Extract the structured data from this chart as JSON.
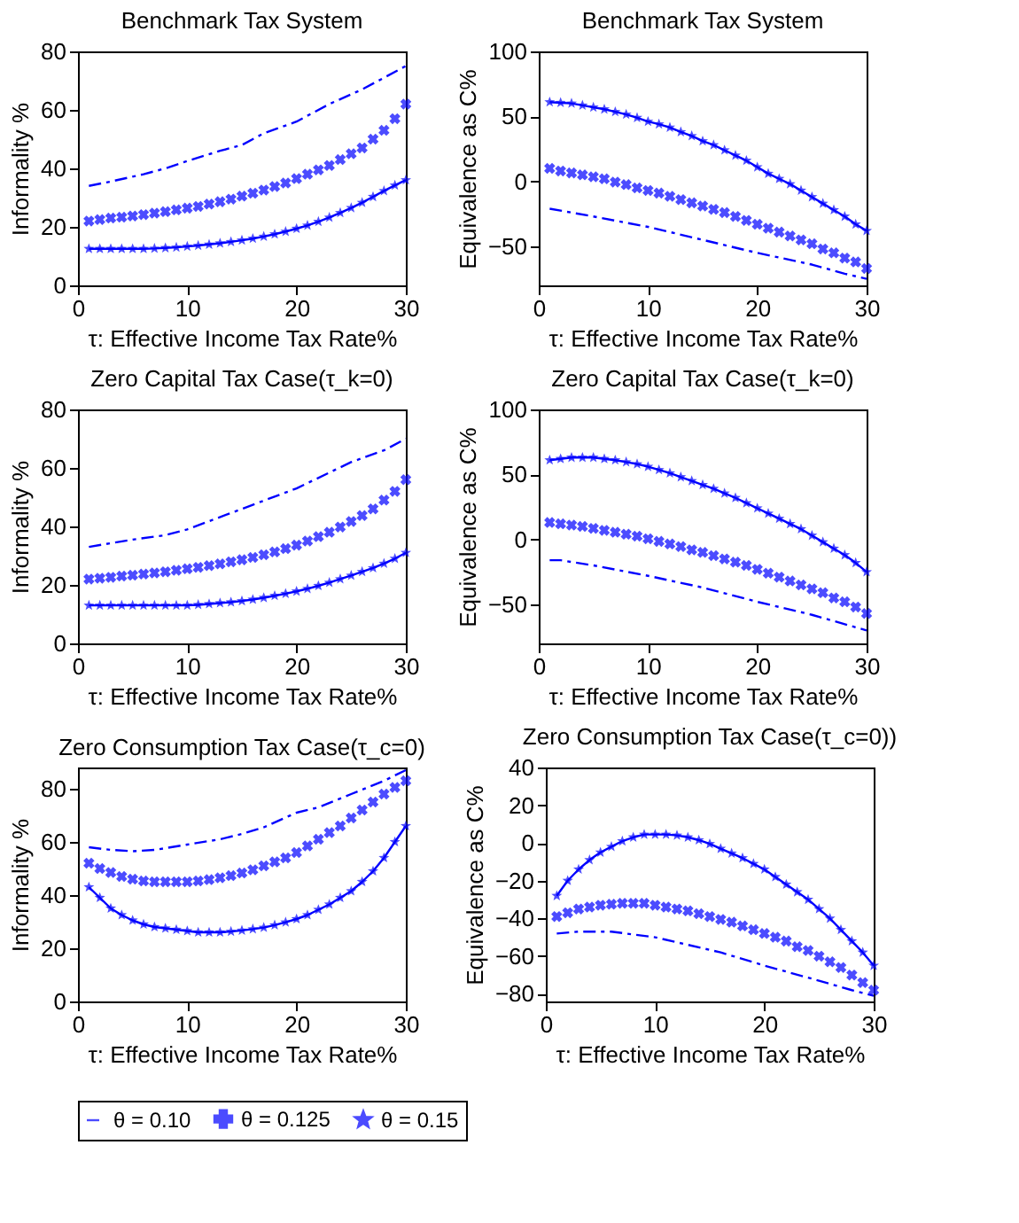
{
  "chart_data": [
    {
      "type": "line",
      "title": "Benchmark Tax System",
      "xlabel": "τ: Effective Income Tax Rate%",
      "ylabel": "Informality %",
      "xlim": [
        0,
        30
      ],
      "xticks": [
        0,
        10,
        20,
        30
      ],
      "ylim": [
        0,
        80
      ],
      "yticks": [
        0,
        20,
        40,
        60,
        80
      ],
      "grid": false,
      "series": [
        {
          "color": "#0000ff",
          "type": "line",
          "line_style": "dashed",
          "marker": "none",
          "x": [
            1,
            3,
            6,
            8,
            10,
            13,
            15,
            17,
            20,
            23,
            26,
            28,
            30
          ],
          "values": [
            34,
            35.5,
            38,
            40,
            42.5,
            46,
            48,
            52,
            56,
            62,
            67,
            71,
            75
          ]
        },
        {
          "color": "#0000ff",
          "type": "scatter",
          "marker": "cross",
          "x": [
            1,
            2,
            3,
            4,
            5,
            6,
            7,
            8,
            9,
            10,
            11,
            12,
            13,
            14,
            15,
            16,
            17,
            18,
            19,
            20,
            21,
            22,
            23,
            24,
            25,
            26,
            27,
            28,
            29,
            30
          ],
          "values": [
            22,
            22.5,
            23,
            23.3,
            23.7,
            24.2,
            24.7,
            25.2,
            25.8,
            26.4,
            27,
            27.8,
            28.6,
            29.5,
            30.5,
            31.5,
            32.6,
            33.8,
            35,
            36.5,
            38,
            39.5,
            41,
            43,
            45,
            47,
            50,
            53,
            57,
            62
          ]
        },
        {
          "color": "#0000ff",
          "type": "line",
          "line_style": "solid",
          "marker": "star",
          "x": [
            1,
            2,
            3,
            4,
            5,
            6,
            7,
            8,
            9,
            10,
            11,
            12,
            13,
            14,
            15,
            16,
            17,
            18,
            19,
            20,
            21,
            22,
            23,
            24,
            25,
            26,
            27,
            28,
            29,
            30
          ],
          "values": [
            12.5,
            12.5,
            12.5,
            12.5,
            12.5,
            12.5,
            12.6,
            12.8,
            13,
            13.3,
            13.6,
            14,
            14.4,
            14.9,
            15.4,
            16,
            16.7,
            17.5,
            18.4,
            19.4,
            20.5,
            21.8,
            23.2,
            24.8,
            26.5,
            28.3,
            30.3,
            32.3,
            34.2,
            36
          ]
        }
      ]
    },
    {
      "type": "line",
      "title": "Benchmark Tax System",
      "xlabel": "τ: Effective Income Tax Rate%",
      "ylabel": "Equivalence as C%",
      "xlim": [
        0,
        30
      ],
      "xticks": [
        0,
        10,
        20,
        30
      ],
      "ylim": [
        -80,
        100
      ],
      "yticks": [
        -50,
        0,
        50,
        100
      ],
      "grid": false,
      "series": [
        {
          "color": "#0000ff",
          "type": "line",
          "line_style": "dashed",
          "marker": "none",
          "x": [
            1,
            5,
            10,
            15,
            20,
            25,
            28,
            30
          ],
          "values": [
            -21,
            -27,
            -35,
            -45,
            -55,
            -64,
            -71,
            -75
          ]
        },
        {
          "color": "#0000ff",
          "type": "scatter",
          "marker": "cross",
          "x": [
            1,
            2,
            3,
            4,
            5,
            6,
            7,
            8,
            9,
            10,
            11,
            12,
            13,
            14,
            15,
            16,
            17,
            18,
            19,
            20,
            21,
            22,
            23,
            24,
            25,
            26,
            27,
            28,
            29,
            30
          ],
          "values": [
            10,
            8,
            6.5,
            5,
            3.5,
            2,
            -0.5,
            -2.5,
            -5,
            -7,
            -9,
            -11.5,
            -14,
            -16.5,
            -19,
            -21.5,
            -24,
            -27,
            -30,
            -33,
            -36,
            -39,
            -42,
            -45,
            -48,
            -52,
            -55,
            -59,
            -62,
            -67
          ]
        },
        {
          "color": "#0000ff",
          "type": "line",
          "line_style": "solid",
          "marker": "star",
          "x": [
            1,
            2,
            3,
            4,
            5,
            6,
            7,
            8,
            9,
            10,
            11,
            12,
            13,
            14,
            15,
            16,
            17,
            18,
            19,
            20,
            21,
            22,
            23,
            24,
            25,
            26,
            27,
            28,
            29,
            30
          ],
          "values": [
            61,
            60.5,
            60,
            58.5,
            57,
            55.5,
            53.5,
            51.5,
            49,
            46,
            44,
            41.5,
            38,
            35,
            31,
            28,
            24,
            20,
            16,
            11,
            6,
            2,
            -2,
            -7,
            -12,
            -17,
            -22,
            -27,
            -33,
            -38
          ]
        }
      ]
    },
    {
      "type": "line",
      "title": "Zero Capital Tax Case(τ_k=0)",
      "xlabel": "τ: Effective Income Tax Rate%",
      "ylabel": "Informality %",
      "xlim": [
        0,
        30
      ],
      "xticks": [
        0,
        10,
        20,
        30
      ],
      "ylim": [
        0,
        80
      ],
      "yticks": [
        0,
        20,
        40,
        60,
        80
      ],
      "grid": false,
      "series": [
        {
          "color": "#0000ff",
          "type": "line",
          "line_style": "dashed",
          "marker": "none",
          "x": [
            1,
            5,
            8,
            10,
            15,
            20,
            25,
            28,
            30
          ],
          "values": [
            33,
            35.5,
            37,
            39,
            46,
            53,
            62,
            66,
            70
          ]
        },
        {
          "color": "#0000ff",
          "type": "scatter",
          "marker": "cross",
          "x": [
            1,
            2,
            3,
            4,
            5,
            6,
            7,
            8,
            9,
            10,
            11,
            12,
            13,
            14,
            15,
            16,
            17,
            18,
            19,
            20,
            21,
            22,
            23,
            24,
            25,
            26,
            27,
            28,
            29,
            30
          ],
          "values": [
            22,
            22.3,
            22.6,
            23,
            23.3,
            23.7,
            24.1,
            24.5,
            25,
            25.5,
            26,
            26.6,
            27.2,
            27.9,
            28.6,
            29.4,
            30.3,
            31.3,
            32.4,
            33.6,
            35,
            36.5,
            38,
            39.8,
            41.7,
            43.7,
            46,
            49,
            52,
            56
          ]
        },
        {
          "color": "#0000ff",
          "type": "line",
          "line_style": "solid",
          "marker": "star",
          "x": [
            1,
            2,
            3,
            4,
            5,
            6,
            7,
            8,
            9,
            10,
            11,
            12,
            13,
            14,
            15,
            16,
            17,
            18,
            19,
            20,
            21,
            22,
            23,
            24,
            25,
            26,
            27,
            28,
            29,
            30
          ],
          "values": [
            13,
            13,
            13,
            13,
            13,
            13,
            13,
            13,
            13,
            13,
            13.2,
            13.5,
            13.8,
            14.1,
            14.5,
            15,
            15.6,
            16.3,
            17,
            17.8,
            18.7,
            19.7,
            20.8,
            22,
            23.2,
            24.5,
            25.8,
            27.3,
            29,
            31
          ]
        }
      ]
    },
    {
      "type": "line",
      "title": "Zero Capital Tax Case(τ_k=0)",
      "xlabel": "τ: Effective Income Tax Rate%",
      "ylabel": "Equivalence as C%",
      "xlim": [
        0,
        30
      ],
      "xticks": [
        0,
        10,
        20,
        30
      ],
      "ylim": [
        -80,
        100
      ],
      "yticks": [
        -50,
        0,
        50,
        100
      ],
      "grid": false,
      "series": [
        {
          "color": "#0000ff",
          "type": "line",
          "line_style": "dashed",
          "marker": "none",
          "x": [
            1,
            2,
            5,
            10,
            15,
            20,
            25,
            30
          ],
          "values": [
            -16,
            -16,
            -20,
            -28,
            -37,
            -48,
            -58,
            -70
          ]
        },
        {
          "color": "#0000ff",
          "type": "scatter",
          "marker": "cross",
          "x": [
            1,
            2,
            3,
            4,
            5,
            6,
            7,
            8,
            9,
            10,
            11,
            12,
            13,
            14,
            15,
            16,
            17,
            18,
            19,
            20,
            21,
            22,
            23,
            24,
            25,
            26,
            27,
            28,
            29,
            30
          ],
          "values": [
            13,
            12,
            11,
            10,
            8.5,
            7,
            5.5,
            4,
            2.5,
            0.5,
            -1.5,
            -3.5,
            -5.5,
            -8,
            -10,
            -12.5,
            -15,
            -17.5,
            -20,
            -23,
            -26,
            -29,
            -32,
            -35,
            -38,
            -41,
            -45,
            -48,
            -52,
            -57
          ]
        },
        {
          "color": "#0000ff",
          "type": "line",
          "line_style": "solid",
          "marker": "star",
          "x": [
            1,
            2,
            3,
            4,
            5,
            6,
            7,
            8,
            9,
            10,
            11,
            12,
            13,
            14,
            15,
            16,
            17,
            18,
            19,
            20,
            21,
            22,
            23,
            24,
            25,
            26,
            27,
            28,
            29,
            30
          ],
          "values": [
            61,
            62,
            63,
            63,
            63,
            62,
            61,
            59.5,
            58,
            56,
            53.5,
            51,
            48,
            45,
            42,
            39,
            35.5,
            32,
            28,
            24,
            20,
            16,
            12,
            8,
            3,
            -2,
            -7,
            -12,
            -18,
            -25
          ]
        }
      ]
    },
    {
      "type": "line",
      "title": "Zero Consumption Tax Case(τ_c=0)",
      "xlabel": "τ: Effective Income Tax Rate%",
      "ylabel": "Informality %",
      "xlim": [
        0,
        30
      ],
      "xticks": [
        0,
        10,
        20,
        30
      ],
      "ylim": [
        0,
        88
      ],
      "yticks": [
        0,
        20,
        40,
        60,
        80
      ],
      "grid": false,
      "series": [
        {
          "color": "#0000ff",
          "type": "line",
          "line_style": "dashed",
          "marker": "none",
          "x": [
            1,
            3,
            5,
            7,
            10,
            13,
            15,
            17,
            20,
            22,
            25,
            28,
            30
          ],
          "values": [
            58,
            57,
            56.5,
            57,
            59,
            61,
            63,
            65.5,
            71,
            73,
            78,
            83,
            87
          ]
        },
        {
          "color": "#0000ff",
          "type": "scatter",
          "marker": "cross",
          "x": [
            1,
            2,
            3,
            4,
            5,
            6,
            7,
            8,
            9,
            10,
            11,
            12,
            13,
            14,
            15,
            16,
            17,
            18,
            19,
            20,
            21,
            22,
            23,
            24,
            25,
            26,
            27,
            28,
            29,
            30
          ],
          "values": [
            52,
            50,
            48.5,
            47,
            46,
            45.3,
            45,
            45,
            45,
            45,
            45.3,
            45.8,
            46.5,
            47.3,
            48.3,
            49.5,
            51,
            52.5,
            54,
            56,
            58.5,
            61,
            63.5,
            66,
            69,
            72,
            75,
            78,
            80.5,
            83
          ]
        },
        {
          "color": "#0000ff",
          "type": "line",
          "line_style": "solid",
          "marker": "star",
          "x": [
            1,
            2,
            3,
            4,
            5,
            6,
            7,
            8,
            9,
            10,
            11,
            12,
            13,
            14,
            15,
            16,
            17,
            18,
            19,
            20,
            21,
            22,
            23,
            24,
            25,
            26,
            27,
            28,
            29,
            30
          ],
          "values": [
            43,
            39,
            35,
            32.5,
            30.5,
            29,
            28,
            27.5,
            27,
            26.5,
            26,
            26,
            26,
            26.3,
            26.7,
            27.2,
            27.8,
            28.7,
            29.8,
            31,
            32.5,
            34.5,
            36.5,
            39,
            41.5,
            45,
            49,
            54,
            60,
            66
          ]
        }
      ]
    },
    {
      "type": "line",
      "title": "Zero Consumption Tax Case(τ_c=0))",
      "xlabel": "τ: Effective Income Tax Rate%",
      "ylabel": "Equivalence as C%",
      "xlim": [
        0,
        30
      ],
      "xticks": [
        0,
        10,
        20,
        30
      ],
      "ylim": [
        -84,
        40
      ],
      "yticks": [
        -80,
        -60,
        -40,
        -20,
        0,
        20,
        40
      ],
      "grid": false,
      "legend": "bottom",
      "series": [
        {
          "name": "θ = 0.10",
          "color": "#0000ff",
          "type": "line",
          "line_style": "dashed",
          "marker": "none",
          "x": [
            1,
            3,
            6,
            10,
            13,
            16,
            20,
            25,
            28,
            30
          ],
          "values": [
            -48,
            -47,
            -47,
            -50,
            -54,
            -58,
            -65,
            -73,
            -78,
            -81
          ]
        },
        {
          "name": "θ = 0.125",
          "color": "#0000ff",
          "type": "scatter",
          "marker": "cross",
          "x": [
            1,
            2,
            3,
            4,
            5,
            6,
            7,
            8,
            9,
            10,
            11,
            12,
            13,
            14,
            15,
            16,
            17,
            18,
            19,
            20,
            21,
            22,
            23,
            24,
            25,
            26,
            27,
            28,
            29,
            30
          ],
          "values": [
            -39,
            -37,
            -35,
            -34,
            -33,
            -32.5,
            -32,
            -32,
            -32,
            -33,
            -34,
            -35,
            -36,
            -37.5,
            -39,
            -40.5,
            -42,
            -44,
            -46,
            -48,
            -50,
            -52,
            -55,
            -57,
            -60,
            -63,
            -66,
            -70,
            -74,
            -78
          ]
        },
        {
          "name": "θ = 0.15",
          "color": "#0000ff",
          "type": "line",
          "line_style": "solid",
          "marker": "star",
          "x": [
            1,
            2,
            3,
            4,
            5,
            6,
            7,
            8,
            9,
            10,
            11,
            12,
            13,
            14,
            15,
            16,
            17,
            18,
            19,
            20,
            21,
            22,
            23,
            24,
            25,
            26,
            27,
            28,
            29,
            30
          ],
          "values": [
            -28,
            -20,
            -14,
            -9,
            -5,
            -2,
            1,
            3,
            4.5,
            4.5,
            4.5,
            4,
            3,
            1.5,
            -0.5,
            -3,
            -5.5,
            -8,
            -11,
            -14,
            -18,
            -22,
            -26,
            -30,
            -35,
            -40,
            -46,
            -52,
            -58,
            -65
          ]
        }
      ]
    }
  ]
}
